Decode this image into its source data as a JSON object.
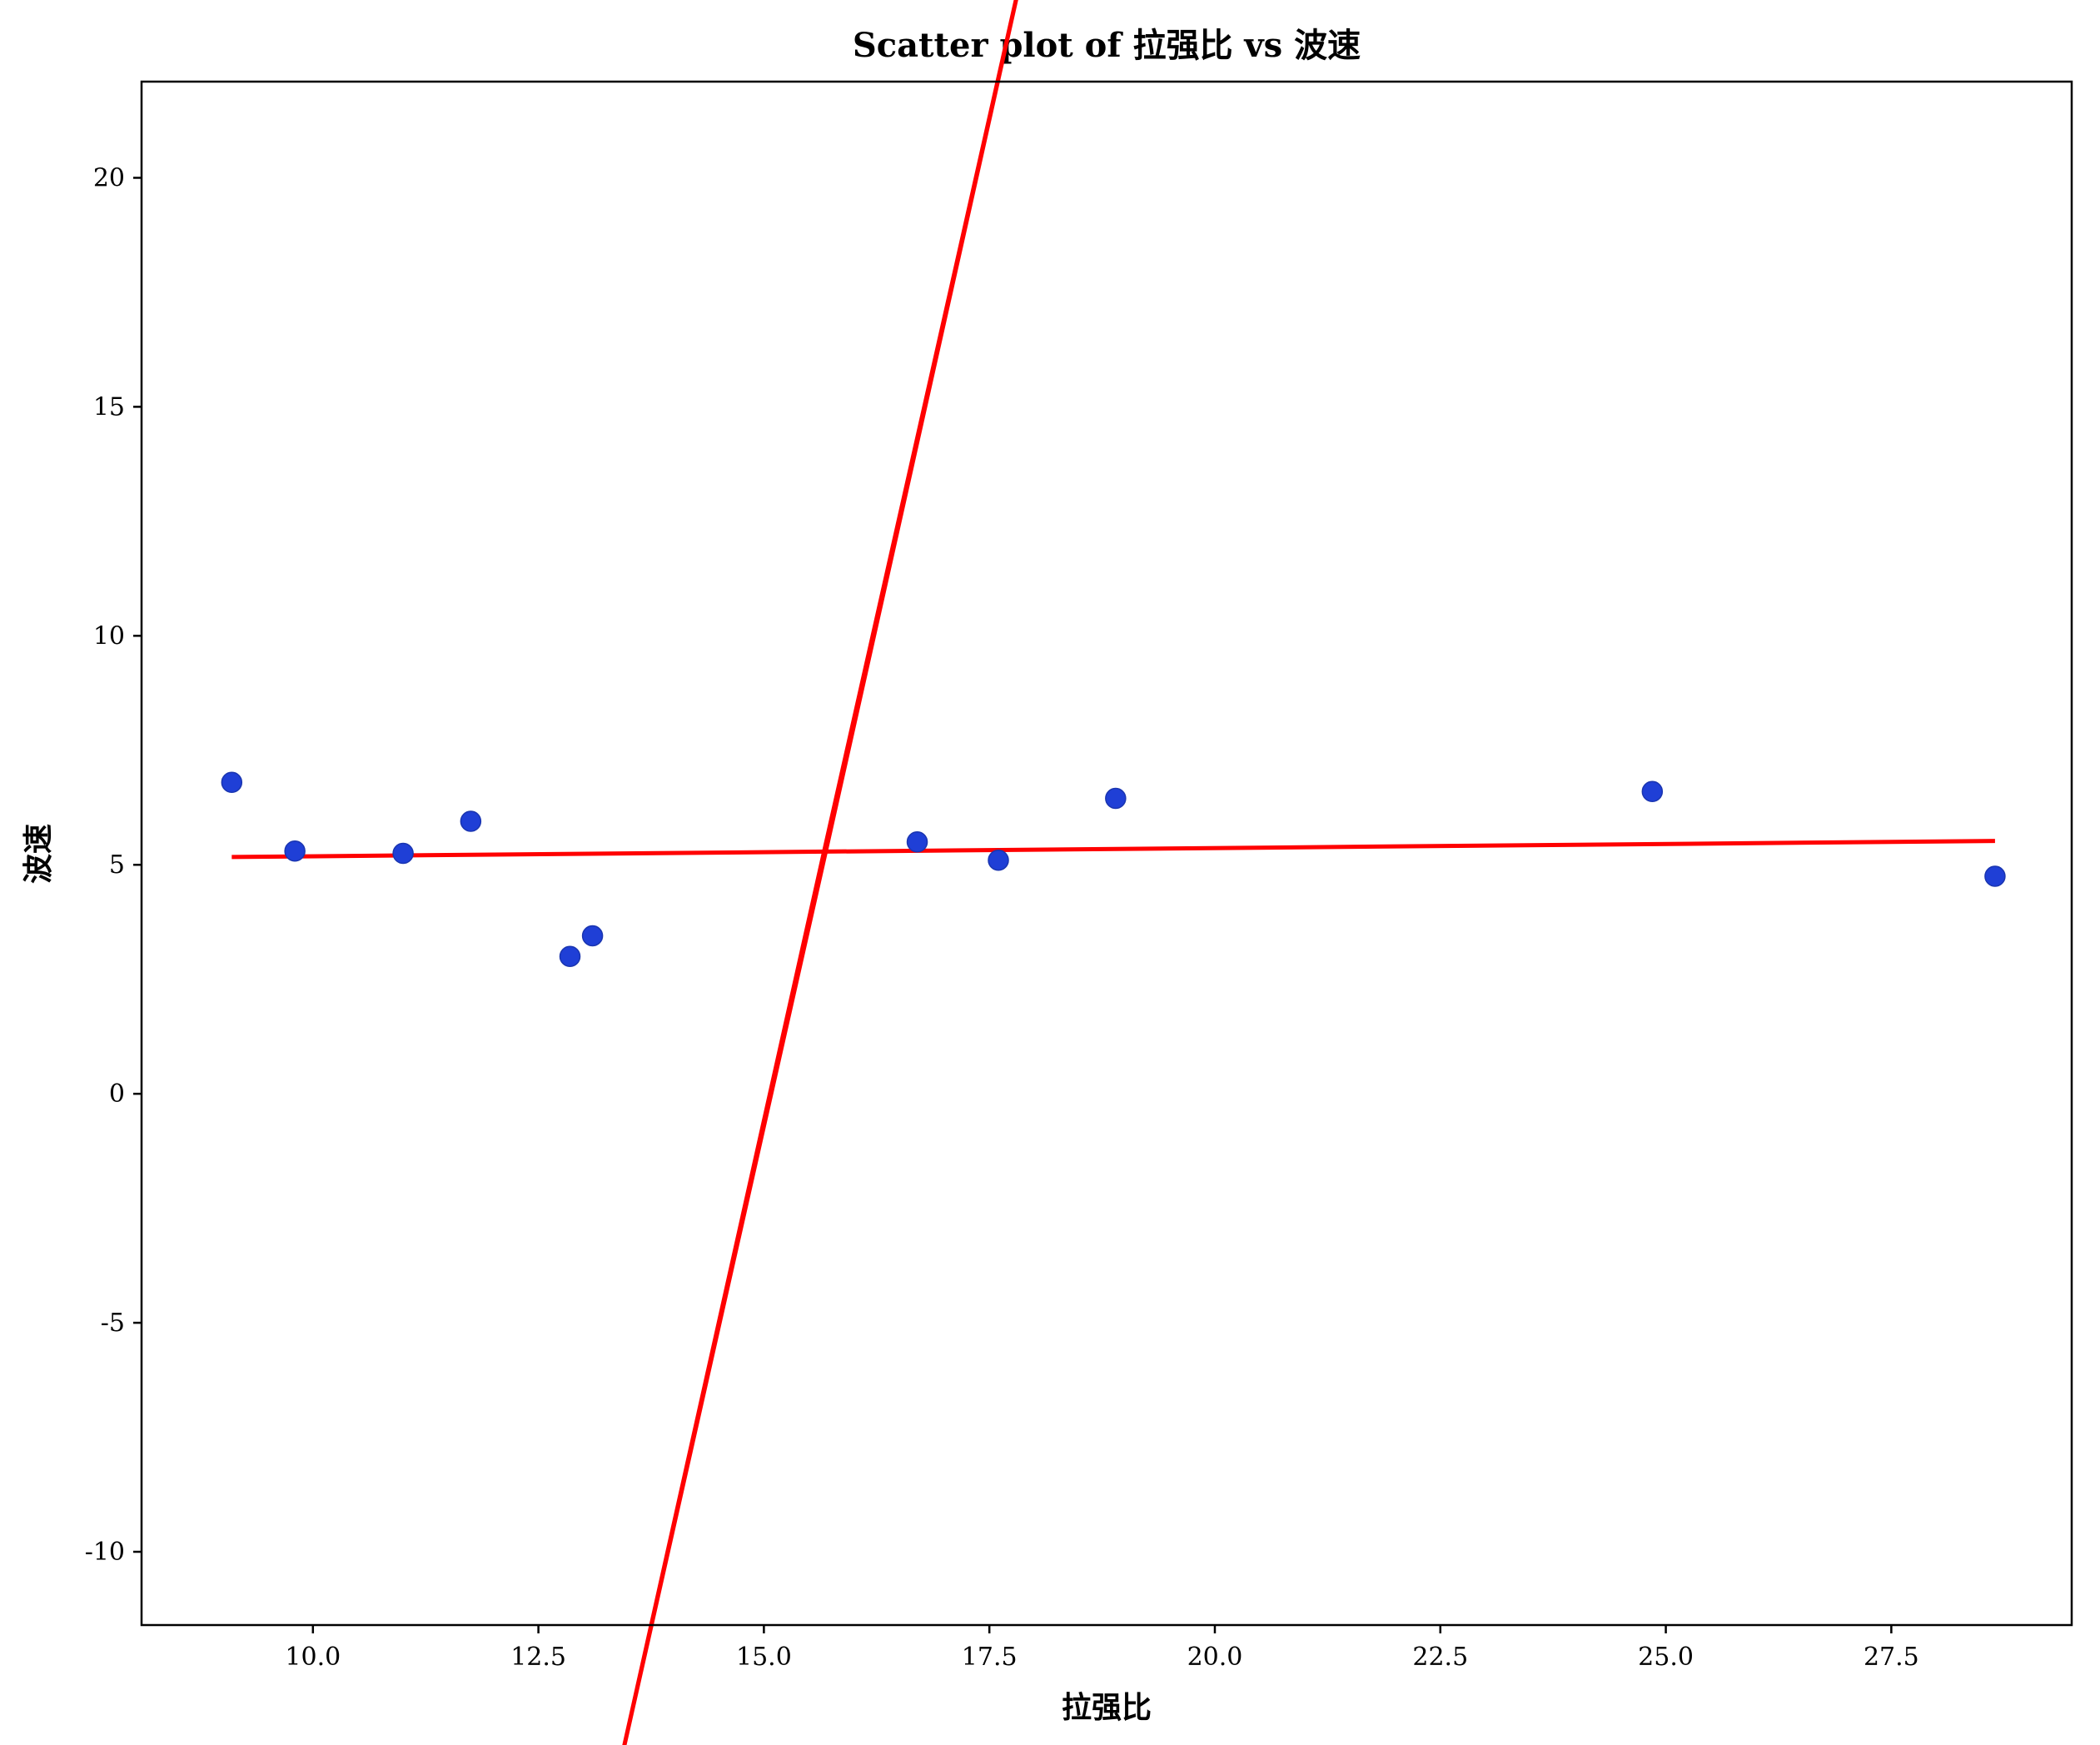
{
  "chart_data": {
    "type": "scatter",
    "title": "Scatter plot of 拉强比 vs 波速",
    "xlabel": "拉强比",
    "ylabel": "波速",
    "xlim": [
      8.1,
      29.5
    ],
    "ylim": [
      -11.6,
      22.1
    ],
    "xticks": [
      10.0,
      12.5,
      15.0,
      17.5,
      20.0,
      22.5,
      25.0,
      27.5
    ],
    "xtick_labels": [
      "10.0",
      "12.5",
      "15.0",
      "17.5",
      "20.0",
      "22.5",
      "25.0",
      "27.5"
    ],
    "yticks": [
      -10,
      -5,
      0,
      5,
      10,
      15,
      20
    ],
    "ytick_labels": [
      "-10",
      "-5",
      "0",
      "5",
      "10",
      "15",
      "20"
    ],
    "grid": false,
    "points": {
      "color": "#1f3fd6",
      "x": [
        9.1,
        9.8,
        11.0,
        11.75,
        12.85,
        13.1,
        16.7,
        17.6,
        18.9,
        24.85,
        28.65
      ],
      "y": [
        6.8,
        5.3,
        5.25,
        5.95,
        3.0,
        3.45,
        5.5,
        5.1,
        6.45,
        6.6,
        4.75
      ]
    },
    "trend_line": {
      "color": "#ff0000",
      "x": [
        9.1,
        28.65
      ],
      "y": [
        5.17,
        5.52
      ]
    },
    "confidence_ellipse": {
      "color": "#ff0000",
      "x_extent": [
        12.3,
        19.05
      ],
      "y_extent": [
        -10.05,
        20.6
      ]
    }
  }
}
